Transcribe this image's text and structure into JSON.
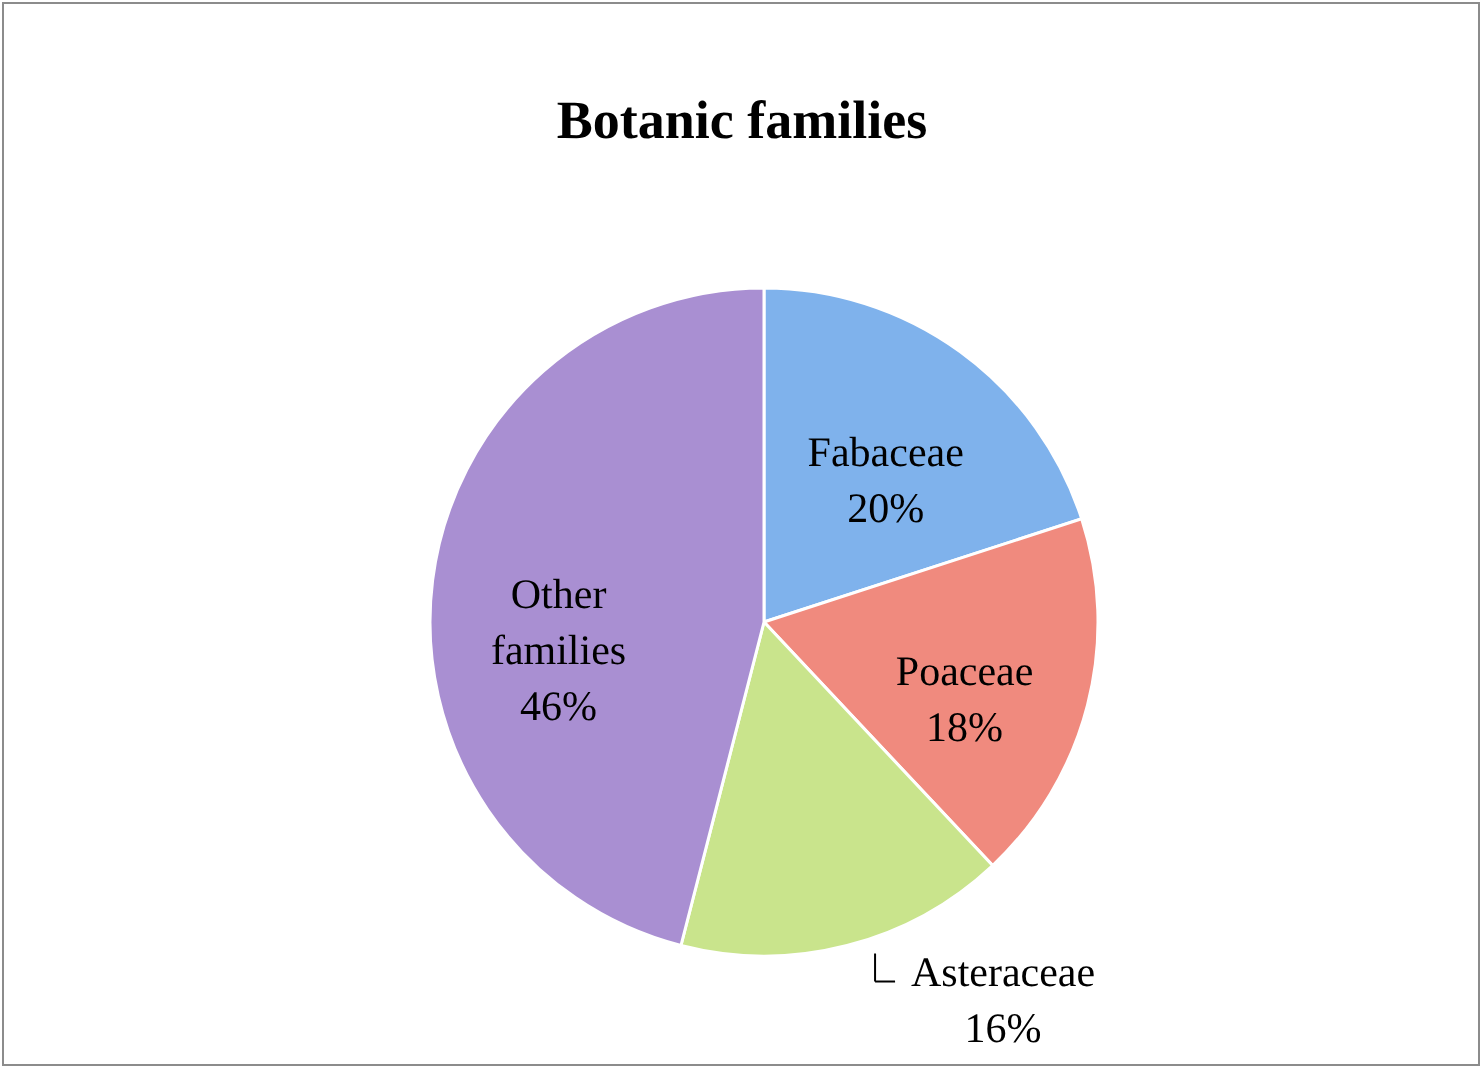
{
  "chart_data": {
    "type": "pie",
    "title": "Botanic families",
    "categories": [
      "Fabaceae",
      "Poaceae",
      "Asteraceae",
      "Other families"
    ],
    "values": [
      20,
      18,
      16,
      46
    ],
    "colors": [
      "#7fb2ec",
      "#f08a7e",
      "#c9e48c",
      "#a98fd2"
    ],
    "value_labels": [
      "20%",
      "18%",
      "16%",
      "46%"
    ]
  }
}
